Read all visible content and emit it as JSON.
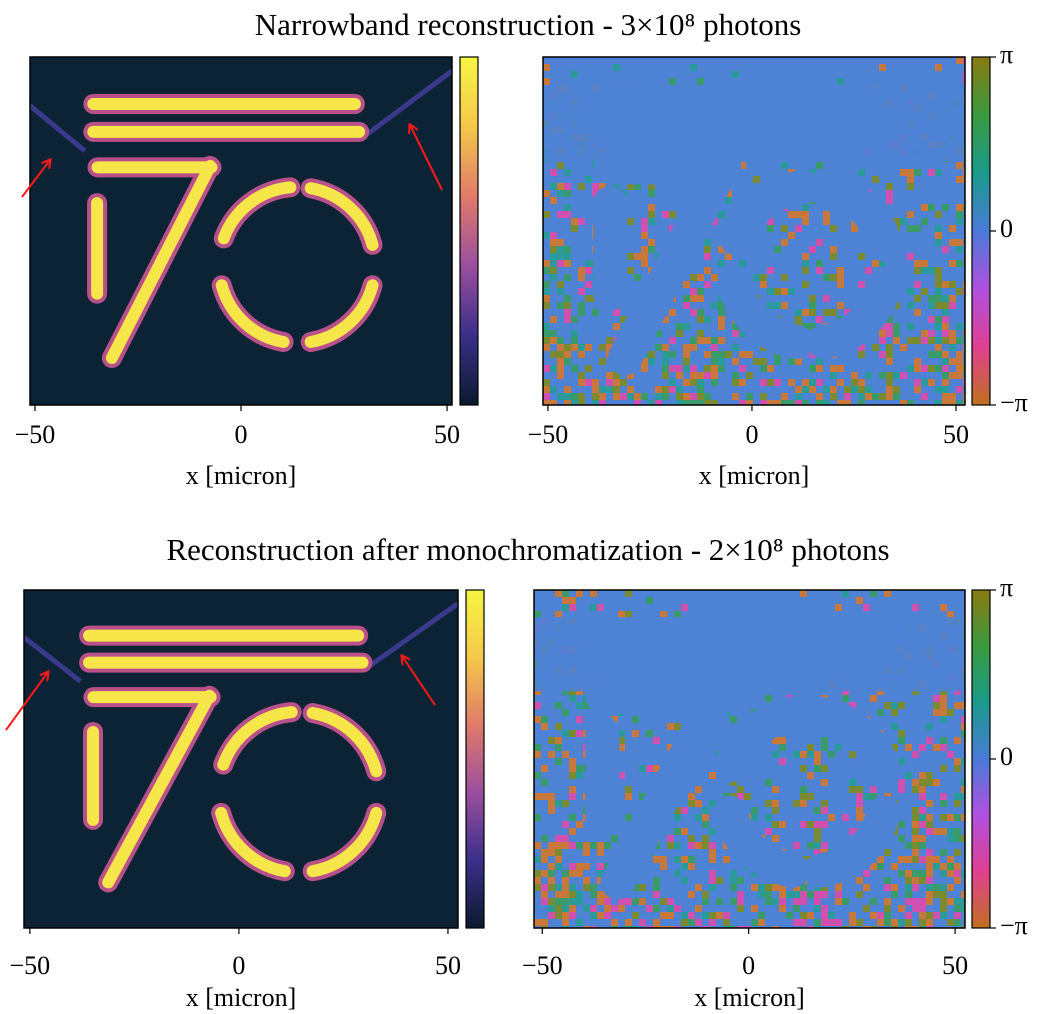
{
  "chart_data": [
    {
      "type": "image",
      "title": "Narrowband reconstruction - 3×10⁸ photons",
      "panels": [
        {
          "xlabel": "x [micron]",
          "xlim": [
            -51.2,
            51.2
          ],
          "xticks": [
            {
              "value": -50,
              "label": "−50"
            },
            0,
            50
          ],
          "colormap": [
            "#0b1a2e",
            "#3a2f8a",
            "#9a4f9e",
            "#e07a6a",
            "#f5c84a",
            "#f5f542"
          ]
        },
        {
          "xlabel": "x [micron]",
          "xlim": [
            -51.2,
            52.2
          ],
          "xticks": [
            {
              "value": -50,
              "label": "−50"
            },
            0,
            50
          ],
          "colormap": [
            "#c07020",
            "#e04090",
            "#b050e0",
            "#4a7ad8",
            "#1a9a8a",
            "#3a9a40",
            "#8a7a10"
          ],
          "clim": [
            -3.14159,
            3.14159
          ],
          "cticks": [
            {
              "value": 3.14159,
              "label": "π"
            },
            0,
            {
              "value": -3.14159,
              "label": "−π"
            }
          ]
        }
      ]
    },
    {
      "type": "image",
      "title": "Reconstruction after monochromatization - 2×10⁸ photons",
      "panels": [
        {
          "xlabel": "x [micron]",
          "xlim": [
            -51.4,
            52.4
          ],
          "xticks": [
            {
              "value": -50,
              "label": "−50"
            },
            0,
            50
          ],
          "colormap": [
            "#0b1a2e",
            "#3a2f8a",
            "#9a4f9e",
            "#e07a6a",
            "#f5c84a",
            "#f5f542"
          ]
        },
        {
          "xlabel": "x [micron]",
          "xlim": [
            -52,
            52.4
          ],
          "xticks": [
            {
              "value": -50,
              "label": "−50"
            },
            0,
            50
          ],
          "colormap": [
            "#c07020",
            "#e04090",
            "#b050e0",
            "#4a7ad8",
            "#1a9a8a",
            "#3a9a40",
            "#8a7a10"
          ],
          "clim": [
            -3.14159,
            3.14159
          ],
          "cticks": [
            {
              "value": 3.14159,
              "label": "π"
            },
            0,
            {
              "value": -3.14159,
              "label": "−π"
            }
          ]
        }
      ]
    }
  ]
}
